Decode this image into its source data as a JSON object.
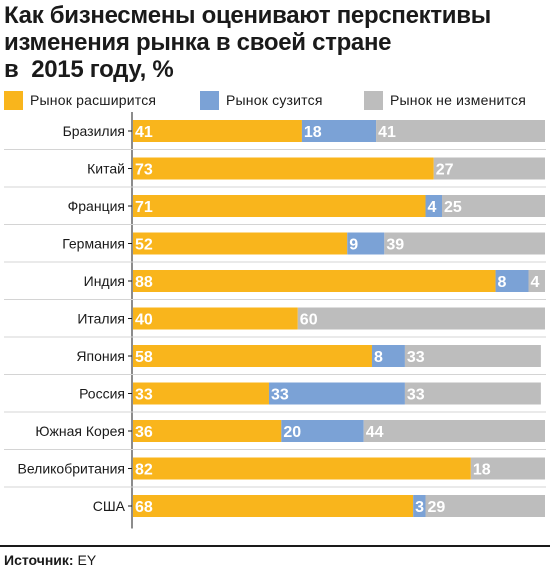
{
  "title_lines": [
    "Как бизнесмены оценивают перспективы",
    "изменения рынка в своей стране",
    "в  2015 году, %"
  ],
  "legend": [
    {
      "label": "Рынок расширится",
      "color": "#F9B51C"
    },
    {
      "label": "Рынок сузится",
      "color": "#7BA2D6"
    },
    {
      "label": "Рынок не изменится",
      "color": "#BDBDBD"
    }
  ],
  "source_label": "Источник:",
  "source_value": "EY",
  "chart_data": {
    "type": "bar",
    "stacked": true,
    "orientation": "horizontal",
    "categories": [
      "Бразилия",
      "Китай",
      "Франция",
      "Германия",
      "Индия",
      "Италия",
      "Япония",
      "Россия",
      "Южная Корея",
      "Великобритания",
      "США"
    ],
    "series": [
      {
        "name": "Рынок расширится",
        "color": "#F9B51C",
        "values": [
          41,
          73,
          71,
          52,
          88,
          40,
          58,
          33,
          36,
          82,
          68
        ]
      },
      {
        "name": "Рынок сузится",
        "color": "#7BA2D6",
        "values": [
          18,
          0,
          4,
          9,
          8,
          0,
          8,
          33,
          20,
          0,
          3
        ]
      },
      {
        "name": "Рынок не изменится",
        "color": "#BDBDBD",
        "values": [
          41,
          27,
          25,
          39,
          4,
          60,
          33,
          33,
          44,
          18,
          29
        ]
      }
    ],
    "xlim": [
      0,
      100
    ]
  }
}
